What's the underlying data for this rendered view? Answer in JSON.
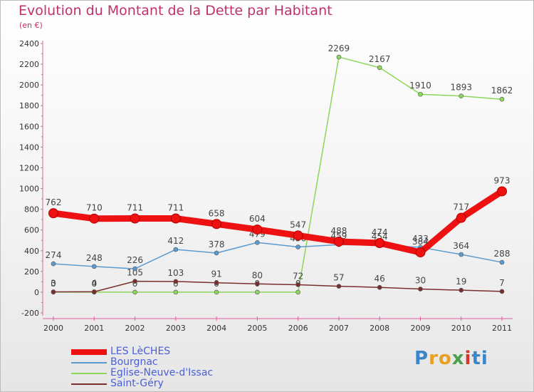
{
  "chart_data": {
    "type": "line",
    "title": "Evolution du Montant de la Dette par Habitant",
    "subtitle": "(en €)",
    "x": [
      "2000",
      "2001",
      "2002",
      "2003",
      "2004",
      "2005",
      "2006",
      "2007",
      "2008",
      "2009",
      "2010",
      "2011"
    ],
    "ylim": [
      -200,
      2400
    ],
    "yticks": [
      -200,
      0,
      200,
      400,
      600,
      800,
      1000,
      1200,
      1400,
      1600,
      1800,
      2000,
      2200,
      2400
    ],
    "grid": false,
    "legend_position": "bottom-left",
    "series": [
      {
        "name": "LES LèCHES",
        "color": "#ee1111",
        "values": [
          762,
          710,
          711,
          711,
          658,
          604,
          547,
          488,
          474,
          384,
          717,
          973
        ],
        "labels": [
          "762",
          "710",
          "711",
          "711",
          "658",
          "604",
          "547",
          "488",
          "474",
          "384",
          "717",
          "973"
        ]
      },
      {
        "name": "Bourgnac",
        "color": "#5b9bd0",
        "values": [
          274,
          248,
          226,
          412,
          378,
          479,
          436,
          459,
          454,
          433,
          364,
          288
        ],
        "labels": [
          "274",
          "248",
          "226",
          "412",
          "378",
          "479",
          "436",
          "459",
          "454",
          "433",
          "364",
          "288"
        ]
      },
      {
        "name": "Eglise-Neuve-d'Issac",
        "color": "#8cd65a",
        "values": [
          0,
          0,
          0,
          0,
          0,
          0,
          0,
          2269,
          2167,
          1910,
          1893,
          1862
        ],
        "labels": [
          "0",
          "0",
          "0",
          "0",
          "0",
          "0",
          "0",
          "2269",
          "2167",
          "1910",
          "1893",
          "1862"
        ]
      },
      {
        "name": "Saint-Géry",
        "color": "#7a2e2e",
        "values": [
          3,
          4,
          105,
          103,
          91,
          80,
          72,
          57,
          46,
          30,
          19,
          7
        ],
        "labels": [
          "3",
          "4",
          "105",
          "103",
          "91",
          "80",
          "72",
          "57",
          "46",
          "30",
          "19",
          "7"
        ]
      }
    ]
  },
  "logo": {
    "letters": [
      "P",
      "r",
      "o",
      "x",
      "i",
      "ti"
    ]
  }
}
